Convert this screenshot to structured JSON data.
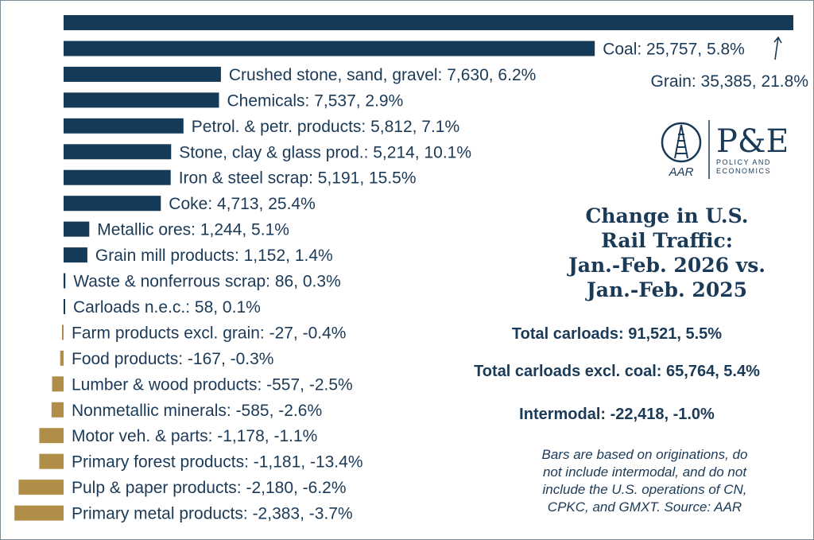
{
  "chart_data": {
    "type": "bar",
    "orientation": "horizontal",
    "title": "Change in U.S. Rail Traffic: Jan.-Feb. 2026 vs. Jan.-Feb. 2025",
    "colors": {
      "positive": "#153a57",
      "negative": "#b08e47"
    },
    "bars": [
      {
        "category": "Grain",
        "value": 35385,
        "pct": "21.8%",
        "label": "Grain: 35,385, 21.8%"
      },
      {
        "category": "Coal",
        "value": 25757,
        "pct": "5.8%",
        "label": "Coal: 25,757, 5.8%"
      },
      {
        "category": "Crushed stone, sand, gravel",
        "value": 7630,
        "pct": "6.2%",
        "label": "Crushed stone, sand, gravel: 7,630, 6.2%"
      },
      {
        "category": "Chemicals",
        "value": 7537,
        "pct": "2.9%",
        "label": "Chemicals: 7,537, 2.9%"
      },
      {
        "category": "Petrol. & petr. products",
        "value": 5812,
        "pct": "7.1%",
        "label": "Petrol. & petr. products: 5,812, 7.1%"
      },
      {
        "category": "Stone, clay & glass prod.",
        "value": 5214,
        "pct": "10.1%",
        "label": "Stone, clay & glass prod.: 5,214, 10.1%"
      },
      {
        "category": "Iron & steel scrap",
        "value": 5191,
        "pct": "15.5%",
        "label": "Iron & steel scrap: 5,191, 15.5%"
      },
      {
        "category": "Coke",
        "value": 4713,
        "pct": "25.4%",
        "label": "Coke: 4,713, 25.4%"
      },
      {
        "category": "Metallic ores",
        "value": 1244,
        "pct": "5.1%",
        "label": "Metallic ores: 1,244, 5.1%"
      },
      {
        "category": "Grain mill products",
        "value": 1152,
        "pct": "1.4%",
        "label": "Grain mill products: 1,152, 1.4%"
      },
      {
        "category": "Waste & nonferrous scrap",
        "value": 86,
        "pct": "0.3%",
        "label": "Waste & nonferrous scrap: 86, 0.3%"
      },
      {
        "category": "Carloads n.e.c.",
        "value": 58,
        "pct": "0.1%",
        "label": "Carloads n.e.c.: 58, 0.1%"
      },
      {
        "category": "Farm products excl. grain",
        "value": -27,
        "pct": "-0.4%",
        "label": "Farm products excl. grain: -27, -0.4%"
      },
      {
        "category": "Food products",
        "value": -167,
        "pct": "-0.3%",
        "label": "Food products: -167, -0.3%"
      },
      {
        "category": "Lumber & wood products",
        "value": -557,
        "pct": "-2.5%",
        "label": "Lumber & wood products: -557, -2.5%"
      },
      {
        "category": "Nonmetallic minerals",
        "value": -585,
        "pct": "-2.6%",
        "label": "Nonmetallic minerals: -585, -2.6%"
      },
      {
        "category": "Motor veh. & parts",
        "value": -1178,
        "pct": "-1.1%",
        "label": "Motor veh. & parts: -1,178, -1.1%"
      },
      {
        "category": "Primary forest products",
        "value": -1181,
        "pct": "-13.4%",
        "label": "Primary forest products: -1,181, -13.4%"
      },
      {
        "category": "Pulp & paper products",
        "value": -2180,
        "pct": "-6.2%",
        "label": "Pulp & paper products: -2,180, -6.2%"
      },
      {
        "category": "Primary metal products",
        "value": -2383,
        "pct": "-3.7%",
        "label": "Primary metal products: -2,383, -3.7%"
      }
    ]
  },
  "title": {
    "line1": "Change in U.S.",
    "line2": "Rail Traffic:",
    "line3": "Jan.-Feb. 2026 vs.",
    "line4": "Jan.-Feb. 2025"
  },
  "totals": {
    "total_carloads": "Total carloads: 91,521, 5.5%",
    "total_excl_coal": "Total carloads excl. coal: 65,764, 5.4%",
    "intermodal": "Intermodal: -22,418, -1.0%"
  },
  "note": {
    "line1": "Bars are based on originations, do",
    "line2": "not include intermodal, and do not",
    "line3": "include the U.S. operations of CN,",
    "line4": "CPKC, and GMXT. Source: AAR"
  },
  "logo": {
    "aar_text": "AAR",
    "pe_text": "P&E",
    "pe_line1": "POLICY AND",
    "pe_line2": "ECONOMICS",
    "primary_color": "#1b3a57",
    "accent_color": "#b08e47"
  }
}
